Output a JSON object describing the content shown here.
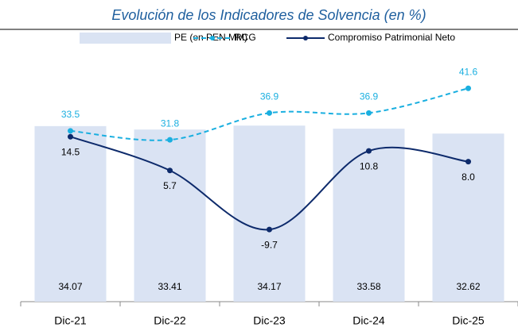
{
  "chart_data": {
    "type": "bar",
    "title": "Evolución de los Indicadores de Solvencia (en %)",
    "categories": [
      "Dic-21",
      "Dic-22",
      "Dic-23",
      "Dic-24",
      "Dic-25"
    ],
    "ylim": [
      0,
      51
    ],
    "y2lim": [
      1,
      51
    ],
    "y3lim": [
      -28.5,
      40
    ],
    "series": [
      {
        "name": "PE (en PEN MM)",
        "type": "bar",
        "axis": "y",
        "color": "#dae3f3",
        "values": [
          34.07,
          33.41,
          34.17,
          33.58,
          32.62
        ]
      },
      {
        "name": "RCG",
        "type": "line",
        "axis": "y2",
        "color": "#1aafe0",
        "dashed": true,
        "values": [
          33.5,
          31.8,
          36.9,
          36.9,
          41.6
        ]
      },
      {
        "name": "Compromiso Patrimonial Neto",
        "type": "line",
        "axis": "y3",
        "color": "#0d2a6b",
        "dashed": false,
        "values": [
          14.5,
          5.7,
          -9.7,
          10.8,
          8.0
        ],
        "value_labels": [
          "14.5",
          "5.7",
          "-9.7",
          "10.8",
          "8.0"
        ]
      }
    ]
  }
}
